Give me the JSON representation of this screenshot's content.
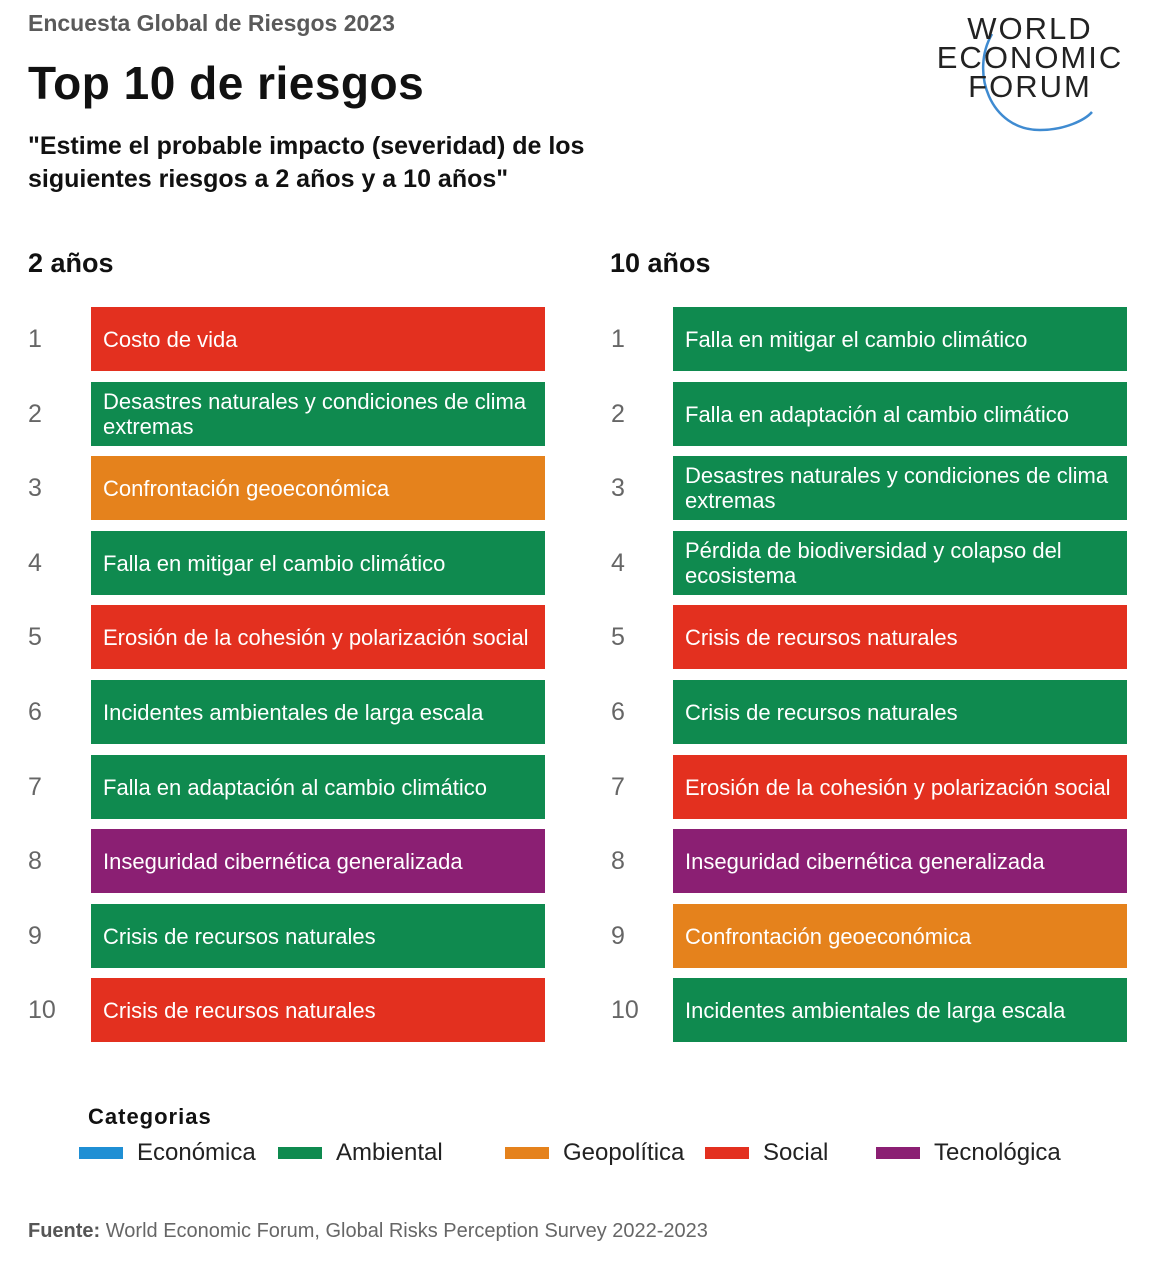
{
  "header": {
    "supertitle": "Encuesta Global de Riesgos 2023",
    "title": "Top 10 de riesgos",
    "question_line1": "\"Estime el probable impacto (severidad) de los",
    "question_line2": "siguientes riesgos a 2 años y a 10 años\""
  },
  "logo": {
    "line1": "WORLD",
    "line2": "ECONOMIC",
    "line3": "FORUM"
  },
  "colors": {
    "Económica": "#1f8fd4",
    "Ambiental": "#0f8a4f",
    "Geopolítica": "#e5821c",
    "Social": "#e3301f",
    "Tecnológica": "#8b1f73"
  },
  "chart_data": {
    "type": "table",
    "columns": [
      {
        "title": "2 años",
        "items": [
          {
            "rank": "1",
            "label": "Costo de vida",
            "category": "Social"
          },
          {
            "rank": "2",
            "label": "Desastres naturales y condiciones de clima extremas",
            "category": "Ambiental"
          },
          {
            "rank": "3",
            "label": "Confrontación geoeconómica",
            "category": "Geopolítica"
          },
          {
            "rank": "4",
            "label": "Falla en mitigar el cambio climático",
            "category": "Ambiental"
          },
          {
            "rank": "5",
            "label": "Erosión de la cohesión y polarización social",
            "category": "Social"
          },
          {
            "rank": "6",
            "label": "Incidentes ambientales de larga escala",
            "category": "Ambiental"
          },
          {
            "rank": "7",
            "label": "Falla en adaptación al cambio climático",
            "category": "Ambiental"
          },
          {
            "rank": "8",
            "label": "Inseguridad cibernética generalizada",
            "category": "Tecnológica"
          },
          {
            "rank": "9",
            "label": "Crisis de recursos naturales",
            "category": "Ambiental"
          },
          {
            "rank": "10",
            "label": "Crisis de recursos naturales",
            "category": "Social"
          }
        ]
      },
      {
        "title": "10 años",
        "items": [
          {
            "rank": "1",
            "label": "Falla en mitigar el cambio climático",
            "category": "Ambiental"
          },
          {
            "rank": "2",
            "label": "Falla en adaptación al cambio climático",
            "category": "Ambiental"
          },
          {
            "rank": "3",
            "label": "Desastres naturales y condiciones de clima extremas",
            "category": "Ambiental"
          },
          {
            "rank": "4",
            "label": "Pérdida de biodiversidad y colapso del ecosistema",
            "category": "Ambiental"
          },
          {
            "rank": "5",
            "label": "Crisis de recursos naturales",
            "category": "Social"
          },
          {
            "rank": "6",
            "label": "Crisis de recursos naturales",
            "category": "Ambiental"
          },
          {
            "rank": "7",
            "label": "Erosión de la cohesión y polarización social",
            "category": "Social"
          },
          {
            "rank": "8",
            "label": "Inseguridad cibernética generalizada",
            "category": "Tecnológica"
          },
          {
            "rank": "9",
            "label": "Confrontación geoeconómica",
            "category": "Geopolítica"
          },
          {
            "rank": "10",
            "label": "Incidentes ambientales de larga escala",
            "category": "Ambiental"
          }
        ]
      }
    ]
  },
  "legend": {
    "title": "Categorias",
    "items": [
      "Económica",
      "Ambiental",
      "Geopolítica",
      "Social",
      "Tecnológica"
    ]
  },
  "source": {
    "label": "Fuente:",
    "text": "World Economic Forum, Global Risks Perception Survey 2022-2023"
  }
}
